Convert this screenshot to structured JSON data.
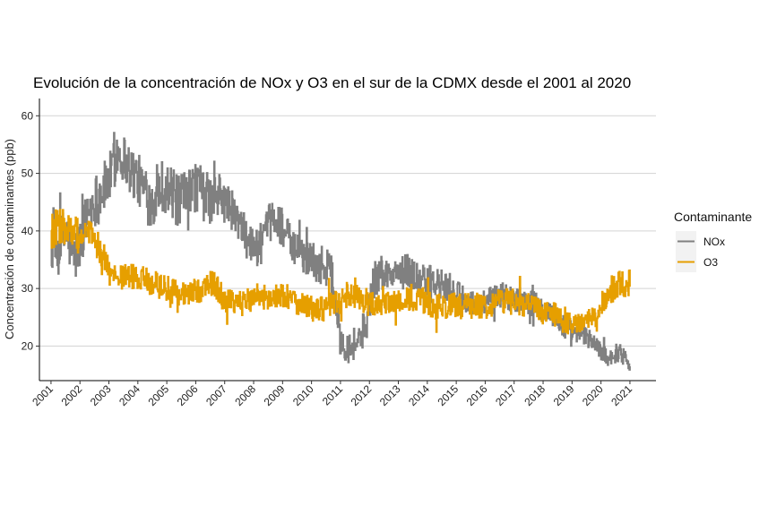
{
  "chart_data": {
    "type": "line",
    "title": "Evolución de la concentración de NOx y O3 en el sur de la CDMX desde el 2001 al 2020",
    "xlabel": "",
    "ylabel": "Concentración de contaminantes (ppb)",
    "xlim": [
      2000.6,
      2021.9
    ],
    "ylim": [
      14,
      63
    ],
    "y_ticks": [
      20,
      30,
      40,
      50,
      60
    ],
    "x_tick_labels": [
      "2001",
      "2002",
      "2003",
      "2004",
      "2005",
      "2006",
      "2007",
      "2008",
      "2009",
      "2010",
      "2011",
      "2012",
      "2013",
      "2014",
      "2015",
      "2016",
      "2017",
      "2018",
      "2019",
      "2020",
      "2021"
    ],
    "grid": "horizontal",
    "legend": {
      "title": "Contaminante",
      "position": "right"
    },
    "series": [
      {
        "name": "NOx",
        "color": "#808080",
        "anchors": [
          [
            2001.0,
            38
          ],
          [
            2001.2,
            36
          ],
          [
            2001.5,
            40
          ],
          [
            2001.8,
            35
          ],
          [
            2002.0,
            38
          ],
          [
            2002.3,
            44
          ],
          [
            2002.6,
            46
          ],
          [
            2002.9,
            48
          ],
          [
            2003.1,
            50
          ],
          [
            2003.3,
            54
          ],
          [
            2003.6,
            52
          ],
          [
            2003.8,
            50
          ],
          [
            2004.0,
            49
          ],
          [
            2004.2,
            47
          ],
          [
            2004.4,
            45
          ],
          [
            2004.6,
            46
          ],
          [
            2004.8,
            48
          ],
          [
            2005.1,
            47
          ],
          [
            2005.4,
            45
          ],
          [
            2005.7,
            46
          ],
          [
            2006.0,
            48
          ],
          [
            2006.3,
            46
          ],
          [
            2006.6,
            45
          ],
          [
            2006.9,
            46
          ],
          [
            2007.2,
            44
          ],
          [
            2007.6,
            40
          ],
          [
            2008.0,
            37
          ],
          [
            2008.3,
            38
          ],
          [
            2008.6,
            42
          ],
          [
            2009.0,
            41
          ],
          [
            2009.3,
            37
          ],
          [
            2009.7,
            36
          ],
          [
            2010.0,
            35
          ],
          [
            2010.3,
            34
          ],
          [
            2010.6,
            34
          ],
          [
            2010.8,
            29
          ],
          [
            2011.0,
            21
          ],
          [
            2011.3,
            20
          ],
          [
            2011.6,
            21
          ],
          [
            2011.9,
            24
          ],
          [
            2012.1,
            31
          ],
          [
            2012.4,
            33
          ],
          [
            2012.7,
            32
          ],
          [
            2013.0,
            33
          ],
          [
            2013.4,
            33
          ],
          [
            2013.8,
            31
          ],
          [
            2014.2,
            31
          ],
          [
            2014.6,
            30
          ],
          [
            2015.0,
            29
          ],
          [
            2015.4,
            28
          ],
          [
            2015.8,
            27
          ],
          [
            2016.2,
            28
          ],
          [
            2016.6,
            29
          ],
          [
            2017.0,
            28
          ],
          [
            2017.4,
            28
          ],
          [
            2017.8,
            27
          ],
          [
            2018.2,
            26
          ],
          [
            2018.6,
            24
          ],
          [
            2019.0,
            22
          ],
          [
            2019.3,
            22
          ],
          [
            2019.7,
            21
          ],
          [
            2020.0,
            19
          ],
          [
            2020.3,
            18
          ],
          [
            2020.6,
            19
          ],
          [
            2020.9,
            18
          ],
          [
            2021.0,
            17
          ]
        ]
      },
      {
        "name": "O3",
        "color": "#E69F00",
        "anchors": [
          [
            2001.0,
            40
          ],
          [
            2001.3,
            41
          ],
          [
            2001.6,
            40
          ],
          [
            2002.0,
            39
          ],
          [
            2002.4,
            39
          ],
          [
            2002.8,
            35
          ],
          [
            2003.1,
            32
          ],
          [
            2003.5,
            32
          ],
          [
            2004.0,
            32
          ],
          [
            2004.5,
            31
          ],
          [
            2005.0,
            30
          ],
          [
            2005.4,
            29
          ],
          [
            2005.8,
            29
          ],
          [
            2006.2,
            30
          ],
          [
            2006.6,
            31
          ],
          [
            2007.0,
            28
          ],
          [
            2007.4,
            27
          ],
          [
            2007.8,
            28
          ],
          [
            2008.2,
            29
          ],
          [
            2008.6,
            28
          ],
          [
            2009.0,
            29
          ],
          [
            2009.4,
            28
          ],
          [
            2009.8,
            27
          ],
          [
            2010.2,
            26
          ],
          [
            2010.6,
            27
          ],
          [
            2011.0,
            28
          ],
          [
            2011.4,
            29
          ],
          [
            2011.8,
            28
          ],
          [
            2012.2,
            27
          ],
          [
            2012.6,
            27
          ],
          [
            2013.0,
            28
          ],
          [
            2013.4,
            28
          ],
          [
            2013.8,
            28
          ],
          [
            2014.2,
            27
          ],
          [
            2014.6,
            27
          ],
          [
            2015.0,
            27
          ],
          [
            2015.5,
            27
          ],
          [
            2016.0,
            27
          ],
          [
            2016.5,
            28
          ],
          [
            2017.0,
            28
          ],
          [
            2017.5,
            27
          ],
          [
            2018.0,
            26
          ],
          [
            2018.5,
            25
          ],
          [
            2019.0,
            24
          ],
          [
            2019.3,
            24
          ],
          [
            2019.6,
            25
          ],
          [
            2019.9,
            25
          ],
          [
            2020.1,
            28
          ],
          [
            2020.4,
            30
          ],
          [
            2020.7,
            31
          ],
          [
            2021.0,
            31
          ]
        ]
      }
    ]
  }
}
